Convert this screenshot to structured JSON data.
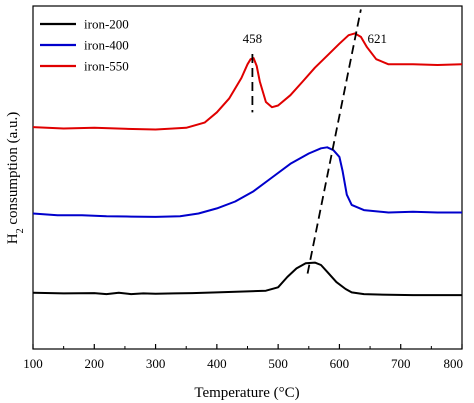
{
  "chart_data": {
    "type": "line",
    "title": "",
    "xlabel": "Temperature (°C)",
    "ylabel_main": "H",
    "ylabel_sub": "2",
    "ylabel_rest": " consumption (a.u.)",
    "xlim": [
      100,
      800
    ],
    "ylim": [
      0,
      1
    ],
    "x_ticks": [
      100,
      200,
      300,
      400,
      500,
      600,
      700,
      800
    ],
    "x_tick_labels": [
      "100",
      "200",
      "300",
      "400",
      "500",
      "600",
      "700",
      "800"
    ],
    "y_ticks_shown": false,
    "grid": false,
    "legend_position": "top-left",
    "series": [
      {
        "name": "iron-200",
        "color": "#000000",
        "points": [
          [
            100,
            0.164
          ],
          [
            150,
            0.162
          ],
          [
            200,
            0.163
          ],
          [
            220,
            0.16
          ],
          [
            240,
            0.164
          ],
          [
            260,
            0.16
          ],
          [
            280,
            0.162
          ],
          [
            300,
            0.161
          ],
          [
            330,
            0.162
          ],
          [
            360,
            0.163
          ],
          [
            400,
            0.165
          ],
          [
            450,
            0.168
          ],
          [
            480,
            0.17
          ],
          [
            500,
            0.18
          ],
          [
            515,
            0.21
          ],
          [
            530,
            0.235
          ],
          [
            545,
            0.25
          ],
          [
            560,
            0.252
          ],
          [
            570,
            0.245
          ],
          [
            580,
            0.225
          ],
          [
            595,
            0.195
          ],
          [
            610,
            0.175
          ],
          [
            620,
            0.165
          ],
          [
            640,
            0.16
          ],
          [
            680,
            0.158
          ],
          [
            720,
            0.157
          ],
          [
            760,
            0.157
          ],
          [
            800,
            0.157
          ]
        ]
      },
      {
        "name": "iron-400",
        "color": "#0000cc",
        "points": [
          [
            100,
            0.395
          ],
          [
            140,
            0.39
          ],
          [
            180,
            0.39
          ],
          [
            220,
            0.387
          ],
          [
            260,
            0.386
          ],
          [
            300,
            0.385
          ],
          [
            340,
            0.387
          ],
          [
            370,
            0.395
          ],
          [
            400,
            0.41
          ],
          [
            430,
            0.43
          ],
          [
            460,
            0.46
          ],
          [
            490,
            0.5
          ],
          [
            520,
            0.54
          ],
          [
            550,
            0.57
          ],
          [
            570,
            0.585
          ],
          [
            580,
            0.588
          ],
          [
            590,
            0.58
          ],
          [
            600,
            0.56
          ],
          [
            605,
            0.52
          ],
          [
            612,
            0.45
          ],
          [
            620,
            0.42
          ],
          [
            640,
            0.405
          ],
          [
            680,
            0.398
          ],
          [
            720,
            0.4
          ],
          [
            760,
            0.398
          ],
          [
            800,
            0.398
          ]
        ]
      },
      {
        "name": "iron-550",
        "color": "#e00000",
        "points": [
          [
            100,
            0.647
          ],
          [
            150,
            0.643
          ],
          [
            200,
            0.645
          ],
          [
            250,
            0.642
          ],
          [
            300,
            0.64
          ],
          [
            350,
            0.645
          ],
          [
            380,
            0.66
          ],
          [
            400,
            0.69
          ],
          [
            420,
            0.73
          ],
          [
            440,
            0.79
          ],
          [
            450,
            0.83
          ],
          [
            455,
            0.845
          ],
          [
            460,
            0.848
          ],
          [
            465,
            0.825
          ],
          [
            470,
            0.78
          ],
          [
            480,
            0.72
          ],
          [
            490,
            0.705
          ],
          [
            500,
            0.71
          ],
          [
            520,
            0.74
          ],
          [
            540,
            0.78
          ],
          [
            560,
            0.82
          ],
          [
            580,
            0.855
          ],
          [
            600,
            0.89
          ],
          [
            615,
            0.915
          ],
          [
            625,
            0.92
          ],
          [
            635,
            0.91
          ],
          [
            645,
            0.88
          ],
          [
            660,
            0.845
          ],
          [
            680,
            0.83
          ],
          [
            720,
            0.83
          ],
          [
            760,
            0.828
          ],
          [
            800,
            0.83
          ]
        ]
      }
    ],
    "annotations": [
      {
        "text": "458",
        "x": 458
      },
      {
        "text": "621",
        "x": 621
      }
    ],
    "guide_lines": [
      {
        "style": "dashed",
        "x1": 458,
        "y1": 0.86,
        "x2": 458,
        "y2": 0.69
      },
      {
        "style": "dashed",
        "x1": 548,
        "y1": 0.22,
        "x2": 635,
        "y2": 0.99
      }
    ]
  }
}
